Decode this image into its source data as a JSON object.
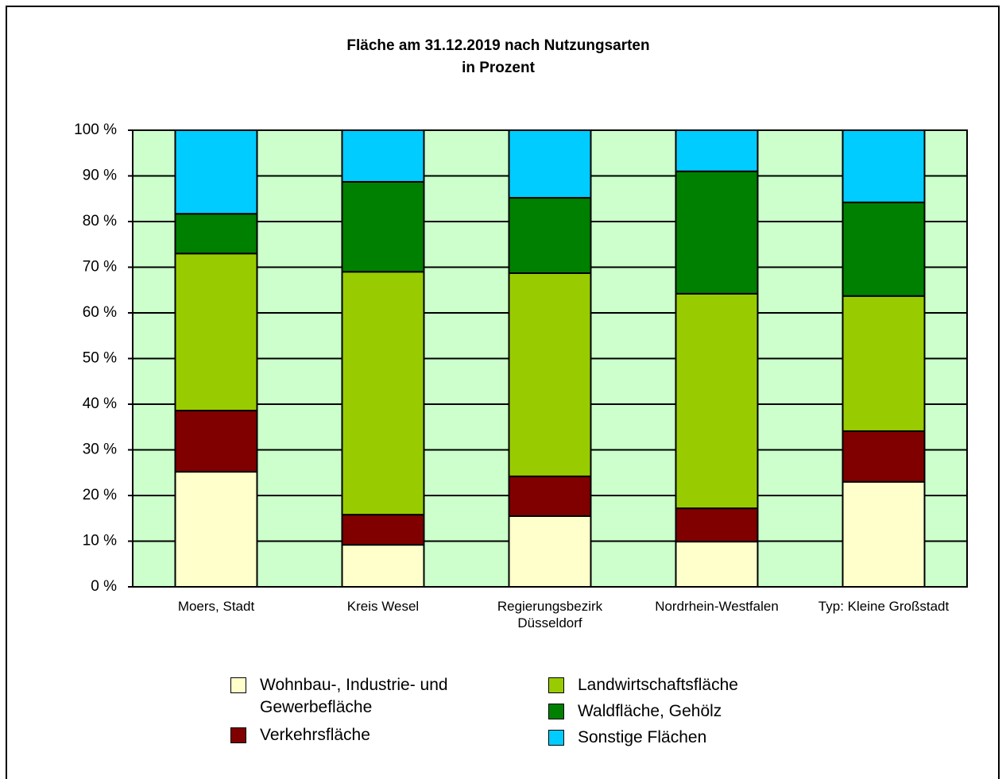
{
  "chart_data": {
    "type": "stacked_bar",
    "title": "Fläche am 31.12.2019 nach Nutzungsarten",
    "subtitle": "in Prozent",
    "categories": [
      "Moers, Stadt",
      "Kreis Wesel",
      "Regierungsbezirk Düsseldorf",
      "Nordrhein-Westfalen",
      "Typ: Kleine Großstadt"
    ],
    "series": [
      {
        "name": "Wohnbau-, Industrie- und Gewerbefläche",
        "color": "#ffffcc",
        "values": [
          25.2,
          9.2,
          15.5,
          9.9,
          23.0
        ]
      },
      {
        "name": "Verkehrsfläche",
        "color": "#800000",
        "values": [
          13.4,
          6.6,
          8.7,
          7.3,
          11.1
        ]
      },
      {
        "name": "Landwirtschaftsfläche",
        "color": "#99cc00",
        "values": [
          34.4,
          53.2,
          44.5,
          47.0,
          29.6
        ]
      },
      {
        "name": "Waldfläche, Gehölz",
        "color": "#008000",
        "values": [
          8.7,
          19.7,
          16.5,
          26.8,
          20.5
        ]
      },
      {
        "name": "Sonstige Flächen",
        "color": "#00ccff",
        "values": [
          18.3,
          11.3,
          14.8,
          9.0,
          15.8
        ]
      }
    ],
    "ylim": [
      0,
      100
    ],
    "yticks": [
      {
        "value": 0,
        "label": "0 %"
      },
      {
        "value": 10,
        "label": "10 %"
      },
      {
        "value": 20,
        "label": "20 %"
      },
      {
        "value": 30,
        "label": "30 %"
      },
      {
        "value": 40,
        "label": "40 %"
      },
      {
        "value": 50,
        "label": "50 %"
      },
      {
        "value": 60,
        "label": "60 %"
      },
      {
        "value": 70,
        "label": "70 %"
      },
      {
        "value": 80,
        "label": "80 %"
      },
      {
        "value": 90,
        "label": "90 %"
      },
      {
        "value": 100,
        "label": "100 %"
      }
    ],
    "grid": true,
    "plot_background": "#ccffcc",
    "legend": "bottom"
  }
}
